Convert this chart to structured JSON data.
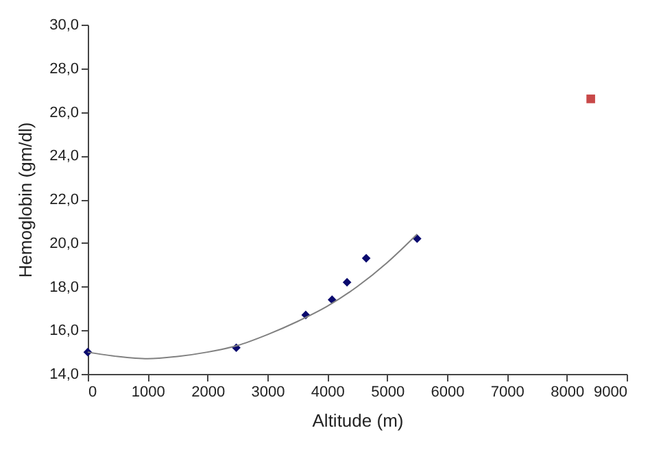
{
  "chart_data": {
    "type": "scatter",
    "xlabel": "Altitude  (m)",
    "ylabel": "Hemoglobin   (gm/dl)",
    "xlim": [
      0,
      9000
    ],
    "xticks": [
      0,
      1000,
      2000,
      3000,
      4000,
      5000,
      6000,
      7000,
      8000,
      9000
    ],
    "ylim": [
      14,
      30
    ],
    "yticks": [
      {
        "value": 14,
        "label": "14,0"
      },
      {
        "value": 16,
        "label": "16,0"
      },
      {
        "value": 18,
        "label": "18,0"
      },
      {
        "value": 20,
        "label": "20,0"
      },
      {
        "value": 22,
        "label": "22,0"
      },
      {
        "value": 24,
        "label": "24,0"
      },
      {
        "value": 26,
        "label": "26,0"
      },
      {
        "value": 28,
        "label": "28,0"
      },
      {
        "value": 30,
        "label": "30,0"
      }
    ],
    "grid": false,
    "series": [
      {
        "marker": "diamond",
        "color": "#0a0a6e",
        "x": [
          0,
          2480,
          3640,
          4080,
          4330,
          4650,
          5500
        ],
        "values": [
          15.0,
          15.2,
          16.7,
          17.4,
          18.2,
          19.3,
          20.2
        ]
      },
      {
        "marker": "square",
        "color": "#c84848",
        "x": [
          8400
        ],
        "values": [
          26.6
        ]
      },
      {
        "type": "line",
        "line_style": "solid",
        "color": "#808080",
        "x": [
          0,
          500,
          1000,
          1500,
          2000,
          2500,
          3000,
          3500,
          4000,
          4500,
          5000,
          5500
        ],
        "values": [
          15.0,
          14.8,
          14.7,
          14.8,
          15.0,
          15.3,
          15.8,
          16.4,
          17.1,
          18.0,
          19.1,
          20.4
        ]
      }
    ]
  }
}
